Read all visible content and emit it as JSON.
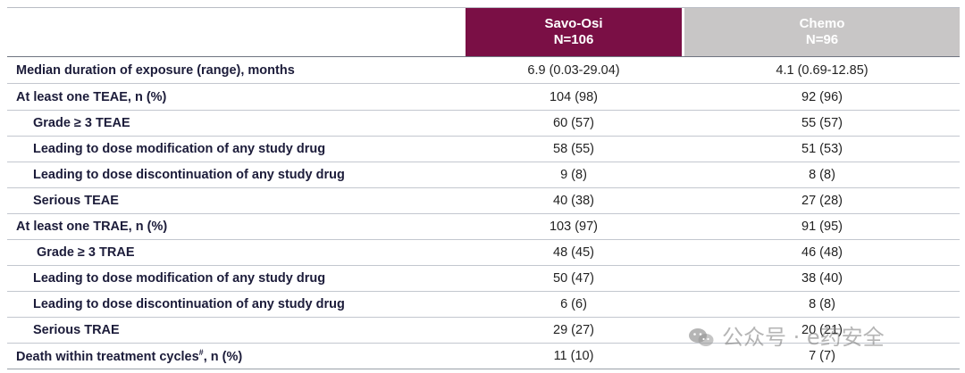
{
  "header": {
    "arm1_name": "Savo-Osi",
    "arm1_n": "N=106",
    "arm2_name": "Chemo",
    "arm2_n": "N=96",
    "arm1_color": "#7a0f45",
    "arm2_color": "#c8c6c6"
  },
  "rows": [
    {
      "label": "Median duration of exposure (range), months",
      "v1": "6.9 (0.03-29.04)",
      "v2": "4.1 (0.69-12.85)"
    },
    {
      "label": "At least one TEAE, n (%)",
      "v1": "104 (98)",
      "v2": "92 (96)"
    },
    {
      "label": "Grade ≥ 3 TEAE",
      "v1": "60 (57)",
      "v2": "55 (57)"
    },
    {
      "label": "Leading to dose modification of any study drug",
      "v1": "58 (55)",
      "v2": "51 (53)"
    },
    {
      "label": "Leading to dose discontinuation of any study drug",
      "v1": "9 (8)",
      "v2": "8 (8)"
    },
    {
      "label": "Serious TEAE",
      "v1": "40 (38)",
      "v2": "27 (28)"
    },
    {
      "label": "At least one TRAE, n (%)",
      "v1": "103 (97)",
      "v2": "91 (95)"
    },
    {
      "label": "Grade ≥ 3 TRAE",
      "v1": "48 (45)",
      "v2": "46 (48)"
    },
    {
      "label": "Leading to dose modification of any study drug",
      "v1": "50 (47)",
      "v2": "38 (40)"
    },
    {
      "label": "Leading to dose discontinuation of any study drug",
      "v1": "6 (6)",
      "v2": "8 (8)"
    },
    {
      "label": "Serious TRAE",
      "v1": "29 (27)",
      "v2": "20 (21)"
    },
    {
      "label_main": "Death within treatment cycles",
      "label_sup": "#",
      "label_tail": ", n (%)",
      "v1": "11 (10)",
      "v2": "7 (7)"
    }
  ],
  "watermark": {
    "text": "公众号 · e药安全",
    "icon": "wechat-icon"
  }
}
